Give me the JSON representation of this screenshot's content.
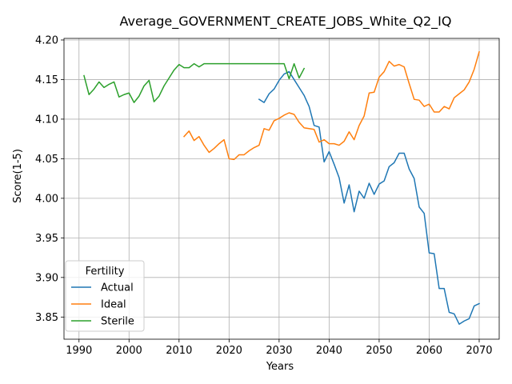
{
  "chart_data": {
    "type": "line",
    "title": "Average_GOVERNMENT_CREATE_JOBS_White_Q2_IQ",
    "xlabel": "Years",
    "ylabel": "Score(1-5)",
    "xlim": [
      1987,
      2074
    ],
    "ylim": [
      3.822,
      4.202
    ],
    "xticks": [
      1990,
      2000,
      2010,
      2020,
      2030,
      2040,
      2050,
      2060,
      2070
    ],
    "yticks": [
      3.85,
      3.9,
      3.95,
      4.0,
      4.05,
      4.1,
      4.15,
      4.2
    ],
    "ytick_labels": [
      "3.85",
      "3.90",
      "3.95",
      "4.00",
      "4.05",
      "4.10",
      "4.15",
      "4.20"
    ],
    "grid": true,
    "legend": {
      "title": "Fertility",
      "location": "lower-left"
    },
    "series": [
      {
        "name": "Actual",
        "color": "#1f77b4",
        "x": [
          2026,
          2027,
          2028,
          2029,
          2030,
          2031,
          2032,
          2033,
          2034,
          2035,
          2036,
          2037,
          2038,
          2039,
          2040,
          2041,
          2042,
          2043,
          2044,
          2045,
          2046,
          2047,
          2048,
          2049,
          2050,
          2051,
          2052,
          2053,
          2054,
          2055,
          2056,
          2057,
          2058,
          2059,
          2060,
          2061,
          2062,
          2063,
          2064,
          2065,
          2066,
          2067,
          2068,
          2069,
          2070
        ],
        "y": [
          4.125,
          4.121,
          4.132,
          4.138,
          4.149,
          4.157,
          4.16,
          4.15,
          4.14,
          4.13,
          4.116,
          4.092,
          4.09,
          4.046,
          4.059,
          4.043,
          4.026,
          3.994,
          4.017,
          3.983,
          4.009,
          4.0,
          4.019,
          4.005,
          4.018,
          4.022,
          4.04,
          4.045,
          4.057,
          4.057,
          4.037,
          4.025,
          3.989,
          3.981,
          3.931,
          3.93,
          3.886,
          3.886,
          3.856,
          3.854,
          3.841,
          3.845,
          3.848,
          3.864,
          3.867
        ]
      },
      {
        "name": "Ideal",
        "color": "#ff7f0e",
        "x": [
          2011,
          2012,
          2013,
          2014,
          2015,
          2016,
          2017,
          2018,
          2019,
          2020,
          2021,
          2022,
          2023,
          2024,
          2025,
          2026,
          2027,
          2028,
          2029,
          2030,
          2031,
          2032,
          2033,
          2034,
          2035,
          2036,
          2037,
          2038,
          2039,
          2040,
          2041,
          2042,
          2043,
          2044,
          2045,
          2046,
          2047,
          2048,
          2049,
          2050,
          2051,
          2052,
          2053,
          2054,
          2055,
          2056,
          2057,
          2058,
          2059,
          2060,
          2061,
          2062,
          2063,
          2064,
          2065,
          2066,
          2067,
          2068,
          2069,
          2070
        ],
        "y": [
          4.078,
          4.085,
          4.073,
          4.078,
          4.067,
          4.058,
          4.063,
          4.069,
          4.074,
          4.05,
          4.049,
          4.055,
          4.055,
          4.06,
          4.064,
          4.067,
          4.088,
          4.086,
          4.098,
          4.101,
          4.105,
          4.108,
          4.106,
          4.096,
          4.089,
          4.088,
          4.087,
          4.071,
          4.074,
          4.069,
          4.069,
          4.067,
          4.072,
          4.084,
          4.074,
          4.092,
          4.104,
          4.133,
          4.134,
          4.153,
          4.16,
          4.173,
          4.167,
          4.169,
          4.166,
          4.145,
          4.125,
          4.124,
          4.116,
          4.119,
          4.109,
          4.109,
          4.116,
          4.113,
          4.127,
          4.132,
          4.137,
          4.147,
          4.163,
          4.185
        ]
      },
      {
        "name": "Sterile",
        "color": "#2ca02c",
        "x": [
          1991,
          1992,
          1993,
          1994,
          1995,
          1996,
          1997,
          1998,
          1999,
          2000,
          2001,
          2002,
          2003,
          2004,
          2005,
          2006,
          2007,
          2008,
          2009,
          2010,
          2011,
          2012,
          2013,
          2014,
          2015,
          2016,
          2017,
          2018,
          2019,
          2020,
          2021,
          2022,
          2023,
          2024,
          2025,
          2026,
          2027,
          2028,
          2029,
          2030,
          2031,
          2032,
          2033,
          2034,
          2035
        ],
        "y": [
          4.155,
          4.131,
          4.138,
          4.147,
          4.14,
          4.144,
          4.147,
          4.128,
          4.131,
          4.133,
          4.121,
          4.129,
          4.142,
          4.149,
          4.122,
          4.129,
          4.142,
          4.152,
          4.162,
          4.169,
          4.165,
          4.165,
          4.17,
          4.166,
          4.17,
          4.17,
          4.17,
          4.17,
          4.17,
          4.17,
          4.17,
          4.17,
          4.17,
          4.17,
          4.17,
          4.17,
          4.17,
          4.17,
          4.17,
          4.17,
          4.17,
          4.151,
          4.17,
          4.152,
          4.164
        ]
      }
    ]
  }
}
